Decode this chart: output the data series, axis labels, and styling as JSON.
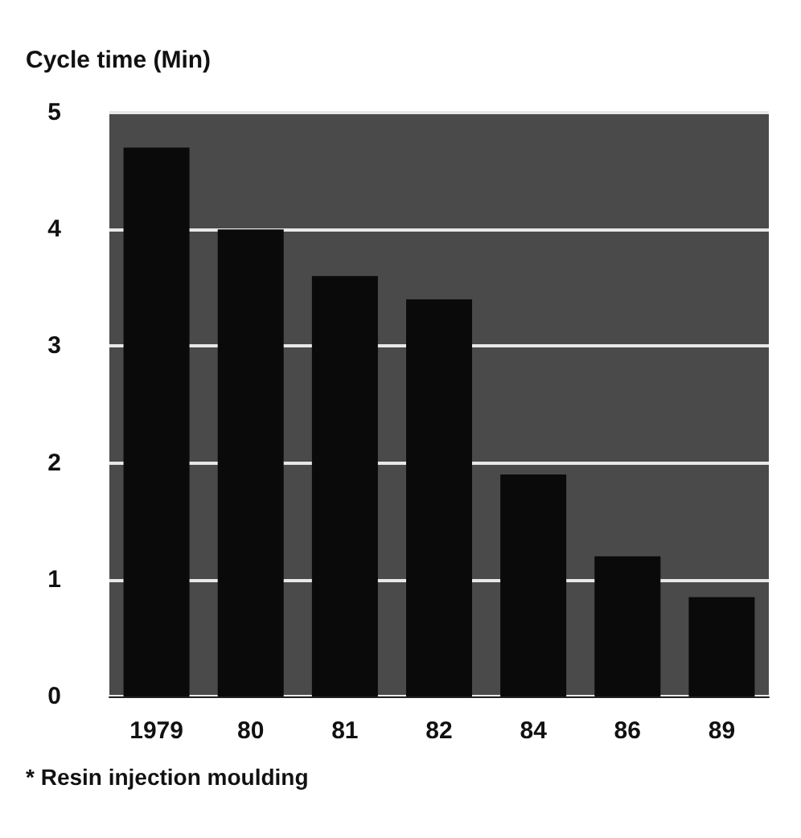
{
  "chart_data": {
    "type": "bar",
    "ylabel": "Cycle time (Min)",
    "categories": [
      "1979",
      "80",
      "81",
      "82",
      "84",
      "86",
      "89"
    ],
    "values": [
      4.7,
      4.0,
      3.6,
      3.4,
      1.9,
      1.2,
      0.85
    ],
    "color": "#0a0a0a",
    "ylim": [
      0,
      5
    ],
    "yticks": [
      0,
      1,
      2,
      3,
      4,
      5
    ],
    "grid": "y",
    "annotations": [
      "* Resin injection moulding"
    ]
  }
}
